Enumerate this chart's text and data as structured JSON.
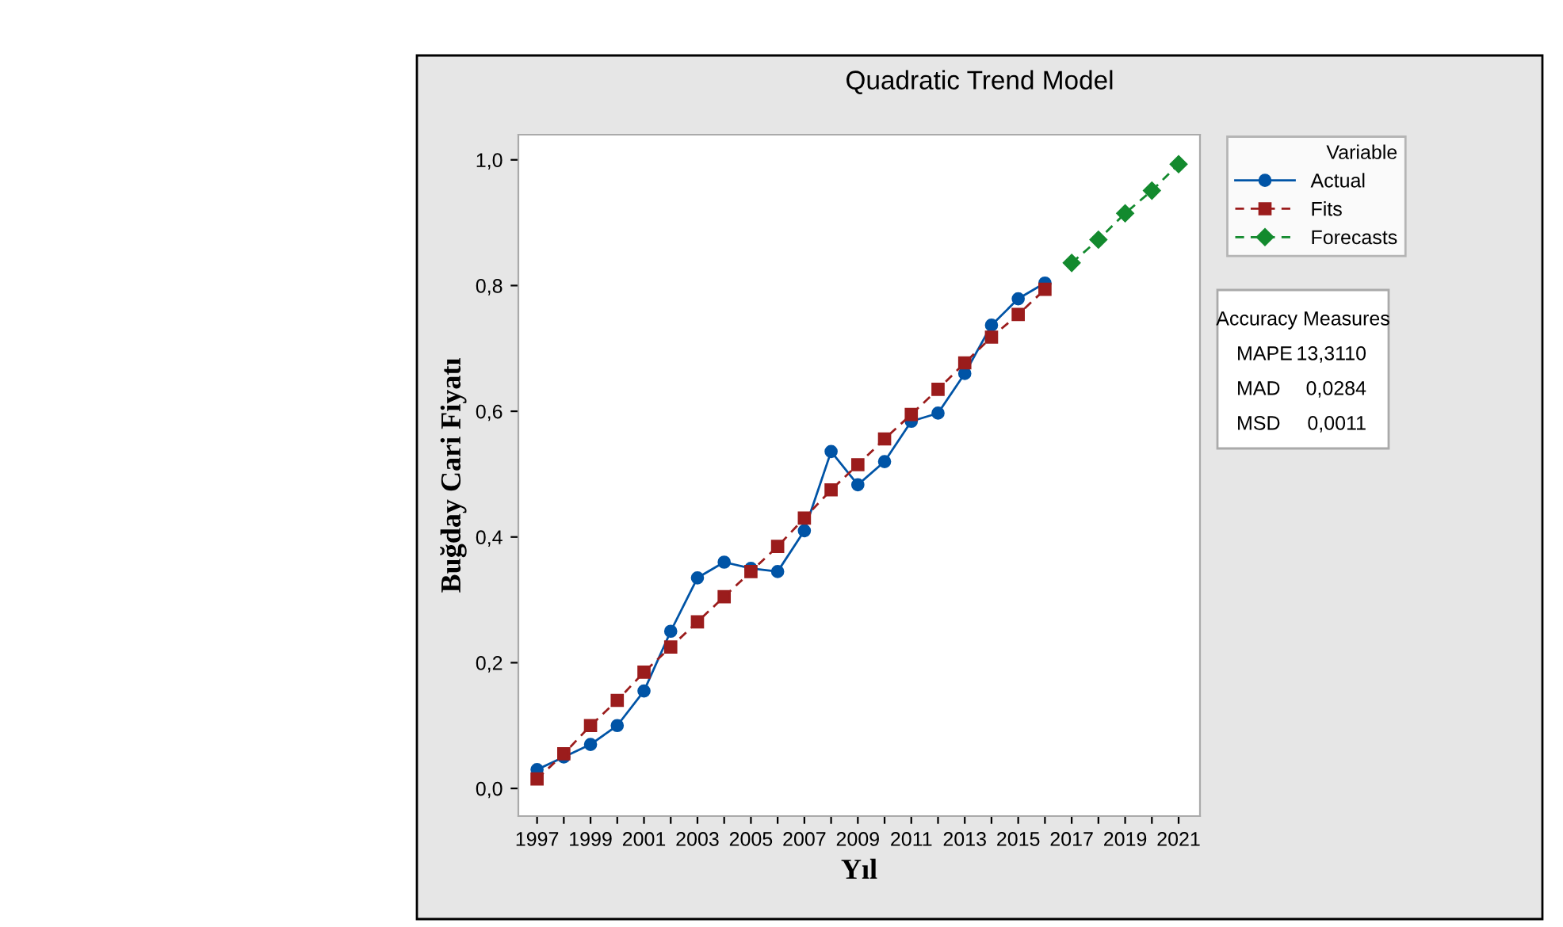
{
  "chart_data": {
    "type": "line",
    "title": "Quadratic Trend Model",
    "xlabel": "Yıl",
    "ylabel": "Buğday Cari Fiyatı",
    "legend_title": "Variable",
    "xlim": [
      1996.3,
      2021.8
    ],
    "xticks": [
      {
        "value": 1997,
        "label": "1997"
      },
      {
        "value": 1998,
        "label": null
      },
      {
        "value": 1999,
        "label": "1999"
      },
      {
        "value": 2000,
        "label": null
      },
      {
        "value": 2001,
        "label": "2001"
      },
      {
        "value": 2002,
        "label": null
      },
      {
        "value": 2003,
        "label": "2003"
      },
      {
        "value": 2004,
        "label": null
      },
      {
        "value": 2005,
        "label": "2005"
      },
      {
        "value": 2006,
        "label": null
      },
      {
        "value": 2007,
        "label": "2007"
      },
      {
        "value": 2008,
        "label": null
      },
      {
        "value": 2009,
        "label": "2009"
      },
      {
        "value": 2010,
        "label": null
      },
      {
        "value": 2011,
        "label": "2011"
      },
      {
        "value": 2012,
        "label": null
      },
      {
        "value": 2013,
        "label": "2013"
      },
      {
        "value": 2014,
        "label": null
      },
      {
        "value": 2015,
        "label": "2015"
      },
      {
        "value": 2016,
        "label": null
      },
      {
        "value": 2017,
        "label": "2017"
      },
      {
        "value": 2018,
        "label": null
      },
      {
        "value": 2019,
        "label": "2019"
      },
      {
        "value": 2020,
        "label": null
      },
      {
        "value": 2021,
        "label": "2021"
      }
    ],
    "ylim": [
      -0.044,
      1.04
    ],
    "yticks": [
      {
        "value": 0,
        "label": "0,0"
      },
      {
        "value": 0.2,
        "label": "0,2"
      },
      {
        "value": 0.4,
        "label": "0,4"
      },
      {
        "value": 0.6,
        "label": "0,6"
      },
      {
        "value": 0.8,
        "label": "0,8"
      },
      {
        "value": 1.0,
        "label": "1,0"
      }
    ],
    "grid": false,
    "legend": "right",
    "series": [
      {
        "name": "Actual",
        "color": "#0054a6",
        "marker": "circle",
        "line_style": "solid",
        "x": [
          1997,
          1998,
          1999,
          2000,
          2001,
          2002,
          2003,
          2004,
          2005,
          2006,
          2007,
          2008,
          2009,
          2010,
          2011,
          2012,
          2013,
          2014,
          2015,
          2016
        ],
        "values": [
          0.03,
          0.05,
          0.07,
          0.1,
          0.155,
          0.25,
          0.335,
          0.36,
          0.35,
          0.345,
          0.41,
          0.536,
          0.483,
          0.52,
          0.584,
          0.597,
          0.66,
          0.737,
          0.779,
          0.804
        ]
      },
      {
        "name": "Fits",
        "color": "#9b1c1c",
        "marker": "square",
        "line_style": "dashed",
        "x": [
          1997,
          1998,
          1999,
          2000,
          2001,
          2002,
          2003,
          2004,
          2005,
          2006,
          2007,
          2008,
          2009,
          2010,
          2011,
          2012,
          2013,
          2014,
          2015,
          2016
        ],
        "values": [
          0.015,
          0.055,
          0.1,
          0.14,
          0.185,
          0.225,
          0.265,
          0.305,
          0.345,
          0.385,
          0.43,
          0.475,
          0.515,
          0.556,
          0.595,
          0.635,
          0.677,
          0.718,
          0.754,
          0.794
        ]
      },
      {
        "name": "Forecasts",
        "color": "#138a2e",
        "marker": "diamond",
        "line_style": "dashed",
        "x": [
          2017,
          2018,
          2019,
          2020,
          2021
        ],
        "values": [
          0.836,
          0.873,
          0.915,
          0.951,
          0.993
        ]
      }
    ],
    "annotations": [
      "Accuracy Measures",
      "MAPE",
      "13,3110",
      "MAD",
      "0,0284",
      "MSD",
      "0,0011"
    ]
  }
}
